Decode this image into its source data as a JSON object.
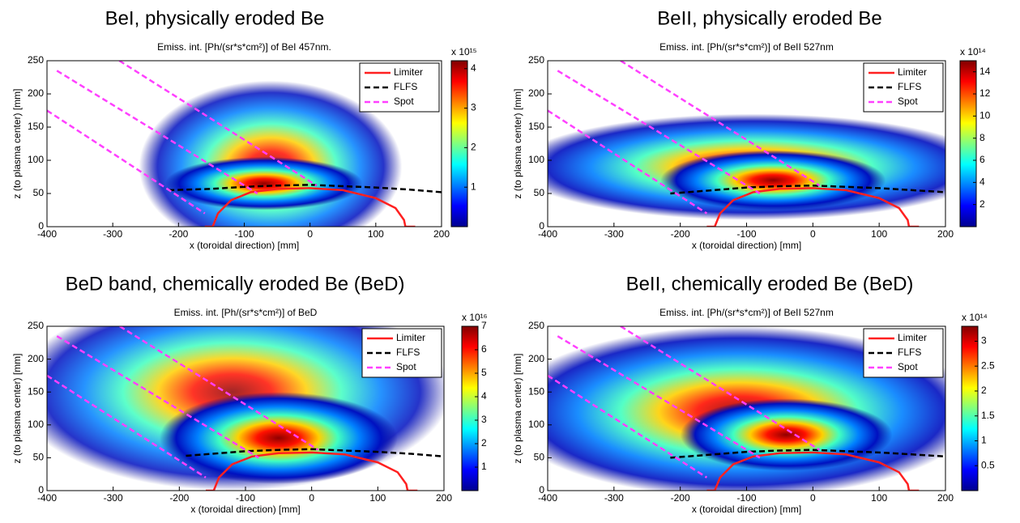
{
  "chart_data": [
    {
      "type": "emission-map",
      "heading": "BeI, physically eroded Be",
      "title": "Emiss. int. [Ph/(sr*s*cm²)] of BeI 457nm.",
      "xlabel": "x (toroidal direction) [mm]",
      "ylabel": "z (to plasma center) [mm]",
      "xlim": [
        -400,
        200
      ],
      "xticks": [
        -400,
        -300,
        -200,
        -100,
        0,
        100,
        200
      ],
      "ylim": [
        0,
        250
      ],
      "yticks": [
        0,
        50,
        100,
        150,
        200,
        250
      ],
      "colorbar": {
        "multiplier": "x 10¹⁵",
        "lim": [
          0,
          4.2
        ],
        "ticks": [
          1,
          2,
          3,
          4
        ]
      },
      "series": [
        {
          "name": "Limiter",
          "color": "#ff2020",
          "style": "solid",
          "x": [
            -160,
            -148,
            -140,
            -120,
            -90,
            -50,
            0,
            50,
            100,
            130,
            143,
            145,
            160
          ],
          "y": [
            0,
            0,
            20,
            40,
            52,
            57,
            58,
            55,
            43,
            28,
            10,
            0,
            0
          ]
        },
        {
          "name": "FLFS",
          "color": "#000000",
          "style": "dashed",
          "x": [
            -215,
            -150,
            -100,
            -50,
            0,
            50,
            100,
            150,
            200
          ],
          "y": [
            55,
            57,
            60,
            62,
            63,
            61,
            59,
            56,
            52
          ]
        },
        {
          "name": "Spot",
          "color": "#ff40ff",
          "style": "dashed",
          "x": [
            -290,
            10,
            null,
            -385,
            -80,
            null,
            -400,
            -160
          ],
          "y": [
            250,
            62,
            null,
            235,
            50,
            null,
            175,
            20
          ]
        }
      ]
    },
    {
      "type": "emission-map",
      "heading": "BeII, physically eroded Be",
      "title": "Emiss. int. [Ph/(sr*s*cm²)] of BeII 527nm",
      "xlabel": "x (toroidal direction) [mm]",
      "ylabel": "z (to plasma center) [mm]",
      "xlim": [
        -400,
        200
      ],
      "xticks": [
        -400,
        -300,
        -200,
        -100,
        0,
        100,
        200
      ],
      "ylim": [
        0,
        250
      ],
      "yticks": [
        0,
        50,
        100,
        150,
        200,
        250
      ],
      "colorbar": {
        "multiplier": "x 10¹⁴",
        "lim": [
          0,
          15
        ],
        "ticks": [
          2,
          4,
          6,
          8,
          10,
          12,
          14
        ]
      },
      "series": [
        {
          "name": "Limiter",
          "color": "#ff2020",
          "style": "solid",
          "x": [
            -160,
            -148,
            -140,
            -120,
            -90,
            -50,
            0,
            50,
            100,
            130,
            143,
            145,
            160
          ],
          "y": [
            0,
            0,
            20,
            40,
            52,
            57,
            58,
            55,
            43,
            28,
            10,
            0,
            0
          ]
        },
        {
          "name": "FLFS",
          "color": "#000000",
          "style": "dashed",
          "x": [
            -215,
            -150,
            -100,
            -50,
            0,
            50,
            100,
            150,
            200
          ],
          "y": [
            50,
            55,
            59,
            61,
            62,
            60,
            58,
            55,
            52
          ]
        },
        {
          "name": "Spot",
          "color": "#ff40ff",
          "style": "dashed",
          "x": [
            -290,
            10,
            null,
            -385,
            -80,
            null,
            -400,
            -160
          ],
          "y": [
            250,
            62,
            null,
            235,
            50,
            null,
            175,
            20
          ]
        }
      ]
    },
    {
      "type": "emission-map",
      "heading": "BeD band, chemically eroded Be (BeD)",
      "title": "Emiss. int. [Ph/(sr*s*cm²)] of BeD",
      "xlabel": "x (toroidal direction) [mm]",
      "ylabel": "z (to plasma center) [mm]",
      "xlim": [
        -400,
        200
      ],
      "xticks": [
        -400,
        -300,
        -200,
        -100,
        0,
        100,
        200
      ],
      "ylim": [
        0,
        250
      ],
      "yticks": [
        0,
        50,
        100,
        150,
        200,
        250
      ],
      "colorbar": {
        "multiplier": "x 10¹⁶",
        "lim": [
          0,
          7
        ],
        "ticks": [
          1,
          2,
          3,
          4,
          5,
          6,
          7
        ]
      },
      "series": [
        {
          "name": "Limiter",
          "color": "#ff2020",
          "style": "solid",
          "x": [
            -160,
            -148,
            -140,
            -120,
            -90,
            -50,
            0,
            50,
            100,
            130,
            143,
            145,
            160
          ],
          "y": [
            0,
            0,
            20,
            40,
            52,
            57,
            58,
            55,
            43,
            28,
            10,
            0,
            0
          ]
        },
        {
          "name": "FLFS",
          "color": "#000000",
          "style": "dashed",
          "x": [
            -190,
            -150,
            -100,
            -50,
            0,
            50,
            100,
            150,
            200
          ],
          "y": [
            53,
            56,
            60,
            62,
            63,
            61,
            59,
            56,
            52
          ]
        },
        {
          "name": "Spot",
          "color": "#ff40ff",
          "style": "dashed",
          "x": [
            -290,
            10,
            null,
            -385,
            -80,
            null,
            -400,
            -160
          ],
          "y": [
            250,
            62,
            null,
            235,
            50,
            null,
            175,
            20
          ]
        }
      ]
    },
    {
      "type": "emission-map",
      "heading": "BeII, chemically eroded Be (BeD)",
      "title": "Emiss. int. [Ph/(sr*s*cm²)] of BeII 527nm",
      "xlabel": "x (toroidal direction) [mm]",
      "ylabel": "z (to plasma center) [mm]",
      "xlim": [
        -400,
        200
      ],
      "xticks": [
        -400,
        -300,
        -200,
        -100,
        0,
        100,
        200
      ],
      "ylim": [
        0,
        250
      ],
      "yticks": [
        0,
        50,
        100,
        150,
        200,
        250
      ],
      "colorbar": {
        "multiplier": "x 10¹⁴",
        "lim": [
          0,
          3.3
        ],
        "ticks": [
          0.5,
          1,
          1.5,
          2,
          2.5,
          3
        ]
      },
      "series": [
        {
          "name": "Limiter",
          "color": "#ff2020",
          "style": "solid",
          "x": [
            -160,
            -148,
            -140,
            -120,
            -90,
            -50,
            0,
            50,
            100,
            130,
            143,
            145,
            160
          ],
          "y": [
            0,
            0,
            20,
            40,
            52,
            57,
            58,
            55,
            43,
            28,
            10,
            0,
            0
          ]
        },
        {
          "name": "FLFS",
          "color": "#000000",
          "style": "dashed",
          "x": [
            -215,
            -150,
            -100,
            -50,
            0,
            50,
            100,
            150,
            200
          ],
          "y": [
            50,
            55,
            59,
            61,
            62,
            60,
            58,
            55,
            52
          ]
        },
        {
          "name": "Spot",
          "color": "#ff40ff",
          "style": "dashed",
          "x": [
            -290,
            10,
            null,
            -385,
            -80,
            null,
            -400,
            -160
          ],
          "y": [
            250,
            62,
            null,
            235,
            50,
            null,
            175,
            20
          ]
        }
      ]
    }
  ]
}
